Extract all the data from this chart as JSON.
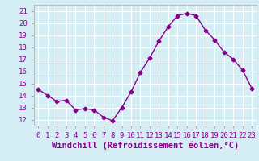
{
  "x": [
    0,
    1,
    2,
    3,
    4,
    5,
    6,
    7,
    8,
    9,
    10,
    11,
    12,
    13,
    14,
    15,
    16,
    17,
    18,
    19,
    20,
    21,
    22,
    23
  ],
  "y": [
    14.5,
    14.0,
    13.5,
    13.6,
    12.8,
    12.9,
    12.8,
    12.2,
    11.9,
    13.0,
    14.3,
    15.9,
    17.1,
    18.5,
    19.7,
    20.6,
    20.8,
    20.6,
    19.4,
    18.6,
    17.6,
    17.0,
    16.1,
    14.6
  ],
  "line_color": "#880088",
  "marker": "D",
  "marker_size": 2.5,
  "line_width": 1.0,
  "xlabel": "Windchill (Refroidissement éolien,°C)",
  "xlabel_fontsize": 7.5,
  "xtick_labels": [
    "0",
    "1",
    "2",
    "3",
    "4",
    "5",
    "6",
    "7",
    "8",
    "9",
    "10",
    "11",
    "12",
    "13",
    "14",
    "15",
    "16",
    "17",
    "18",
    "19",
    "20",
    "21",
    "22",
    "23"
  ],
  "ylim": [
    11.5,
    21.5
  ],
  "yticks": [
    12,
    13,
    14,
    15,
    16,
    17,
    18,
    19,
    20,
    21
  ],
  "background_color": "#d5eef5",
  "grid_color": "#c0dde8",
  "tick_fontsize": 6.5,
  "label_color": "#880088"
}
